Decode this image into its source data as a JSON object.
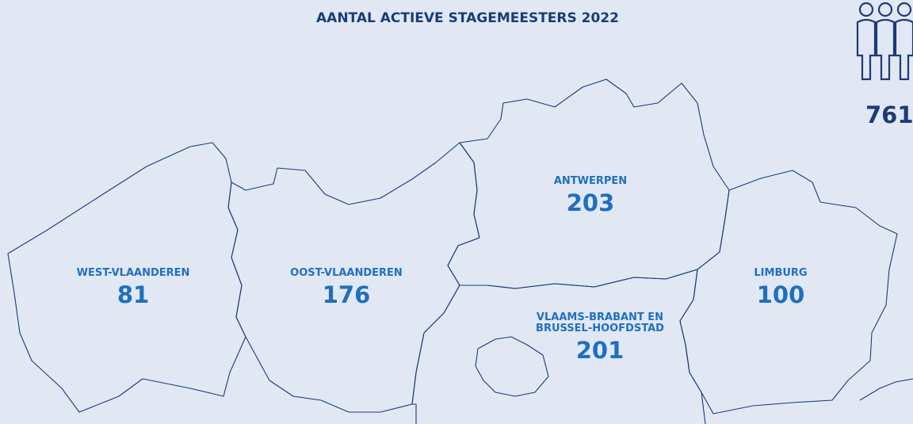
{
  "title": "AANTAL ACTIEVE STAGEMEESTERS 2022",
  "total": "761",
  "regions": [
    {
      "name": [
        "WEST-VLAANDEREN"
      ],
      "value": "81"
    },
    {
      "name": [
        "OOST-VLAANDEREN"
      ],
      "value": "176"
    },
    {
      "name": [
        "ANTWERPEN"
      ],
      "value": "203"
    },
    {
      "name": [
        "VLAAMS-BRABANT EN",
        "BRUSSEL-HOOFDSTAD"
      ],
      "value": "201"
    },
    {
      "name": [
        "LIMBURG"
      ],
      "value": "100"
    }
  ]
}
